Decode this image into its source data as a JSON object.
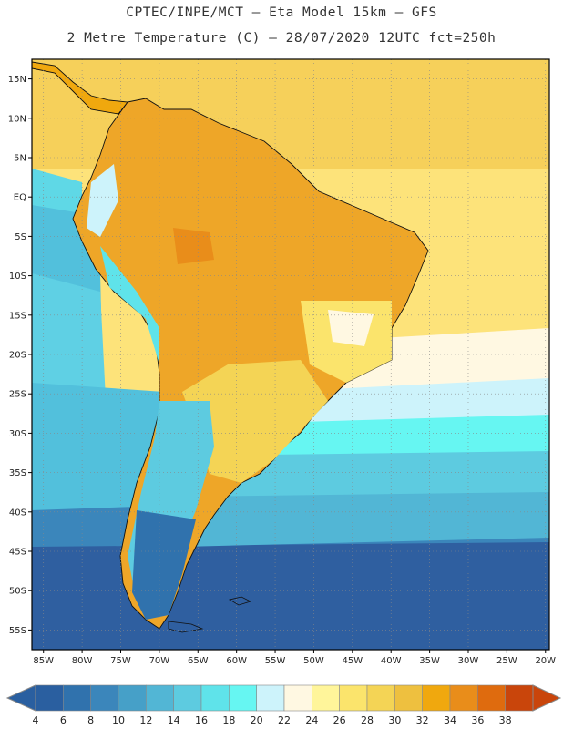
{
  "header": {
    "line1": "CPTEC/INPE/MCT –  Eta Model 15km – GFS",
    "line2": "2 Metre Temperature (C) – 28/07/2020 12UTC fct=250h"
  },
  "map": {
    "lat_ticks": [
      "15N",
      "10N",
      "5N",
      "EQ",
      "5S",
      "10S",
      "15S",
      "20S",
      "25S",
      "30S",
      "35S",
      "40S",
      "45S",
      "50S",
      "55S"
    ],
    "lon_ticks": [
      "85W",
      "80W",
      "75W",
      "70W",
      "65W",
      "60W",
      "55W",
      "50W",
      "45W",
      "40W",
      "35W",
      "30W",
      "25W",
      "20W"
    ],
    "lat_range": [
      17.5,
      -57.5
    ],
    "lon_range": [
      -86.5,
      -19.5
    ]
  },
  "legend": {
    "labels": [
      "4",
      "6",
      "8",
      "10",
      "12",
      "14",
      "16",
      "18",
      "20",
      "22",
      "24",
      "26",
      "28",
      "30",
      "32",
      "34",
      "36",
      "38"
    ],
    "colors": [
      "#2a5fa0",
      "#3072ad",
      "#3b86bb",
      "#46a0c8",
      "#52b6d5",
      "#5dcbe0",
      "#5fe3ea",
      "#66f6f2",
      "#cdf3fb",
      "#fff8e2",
      "#fff59a",
      "#fbe46c",
      "#f4d455",
      "#eec03f",
      "#f0a80e",
      "#e98d1a",
      "#df6b0e",
      "#c9450b"
    ]
  }
}
